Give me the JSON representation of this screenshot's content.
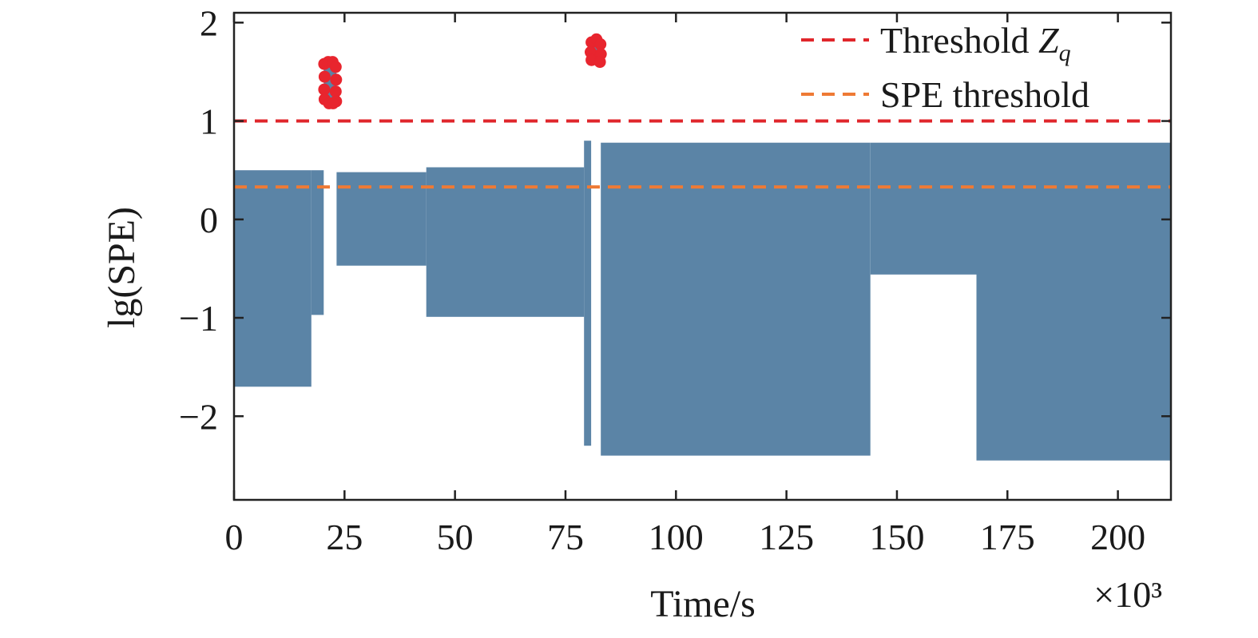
{
  "chart_data": {
    "type": "line",
    "xlabel": "Time/s",
    "ylabel": "lg(SPE)",
    "x_multiplier": "×10³",
    "xlim": [
      0,
      212
    ],
    "ylim": [
      -2.85,
      2.1
    ],
    "x_ticks": [
      0,
      25,
      50,
      75,
      100,
      125,
      150,
      175,
      200
    ],
    "y_ticks": [
      -2,
      -1,
      0,
      1,
      2
    ],
    "x_tick_labels": [
      "0",
      "25",
      "50",
      "75",
      "100",
      "125",
      "150",
      "175",
      "200"
    ],
    "y_tick_labels": [
      "−2",
      "−1",
      "0",
      "1",
      "2"
    ],
    "grid": false,
    "legend_position": "top-right",
    "colors": {
      "signal": "#5b84a6",
      "threshold_zq": "#e0262b",
      "spe_threshold": "#ee7a35",
      "anomaly_marker": "#e8252e"
    },
    "series": [
      {
        "kind": "band",
        "segments": [
          {
            "x": [
              0,
              17.5
            ],
            "upper": 0.5,
            "lower": -1.7
          },
          {
            "x": [
              17.5,
              20.3
            ],
            "upper": 0.5,
            "lower": -0.97
          },
          {
            "x": [
              20.3,
              23.2
            ],
            "upper": 1.6,
            "lower": 1.2
          },
          {
            "x": [
              23.2,
              43.5
            ],
            "upper": 0.48,
            "lower": -0.47
          },
          {
            "x": [
              43.5,
              79.2
            ],
            "upper": 0.53,
            "lower": -0.99
          },
          {
            "x": [
              79.2,
              80.8
            ],
            "upper": 0.8,
            "lower": -2.3
          },
          {
            "x": [
              80.8,
              83.0
            ],
            "upper": 1.8,
            "lower": 1.6
          },
          {
            "x": [
              83.0,
              144.0
            ],
            "upper": 0.78,
            "lower": -2.4
          },
          {
            "x": [
              144.0,
              168.0
            ],
            "upper": 0.78,
            "lower": -0.56
          },
          {
            "x": [
              168.0,
              212.0
            ],
            "upper": 0.78,
            "lower": -2.45
          }
        ]
      },
      {
        "name": "Threshold Zq",
        "legend_label": "Threshold ",
        "legend_symbol": "Z",
        "legend_subscript": "q",
        "kind": "hline",
        "y": 1.0,
        "style": "dashed"
      },
      {
        "name": "SPE threshold",
        "legend_label": "SPE threshold",
        "kind": "hline",
        "y": 0.33,
        "style": "dashed"
      },
      {
        "kind": "anomaly_markers",
        "points": [
          {
            "x": 20.4,
            "y": 1.58
          },
          {
            "x": 20.5,
            "y": 1.45
          },
          {
            "x": 20.4,
            "y": 1.32
          },
          {
            "x": 20.5,
            "y": 1.22
          },
          {
            "x": 21.3,
            "y": 1.6
          },
          {
            "x": 22.3,
            "y": 1.6
          },
          {
            "x": 23.0,
            "y": 1.55
          },
          {
            "x": 23.1,
            "y": 1.42
          },
          {
            "x": 23.0,
            "y": 1.3
          },
          {
            "x": 23.1,
            "y": 1.2
          },
          {
            "x": 21.5,
            "y": 1.18
          },
          {
            "x": 22.4,
            "y": 1.18
          },
          {
            "x": 80.9,
            "y": 1.8
          },
          {
            "x": 80.7,
            "y": 1.7
          },
          {
            "x": 80.9,
            "y": 1.62
          },
          {
            "x": 82.0,
            "y": 1.83
          },
          {
            "x": 82.9,
            "y": 1.78
          },
          {
            "x": 83.0,
            "y": 1.68
          },
          {
            "x": 82.8,
            "y": 1.6
          }
        ]
      }
    ]
  }
}
